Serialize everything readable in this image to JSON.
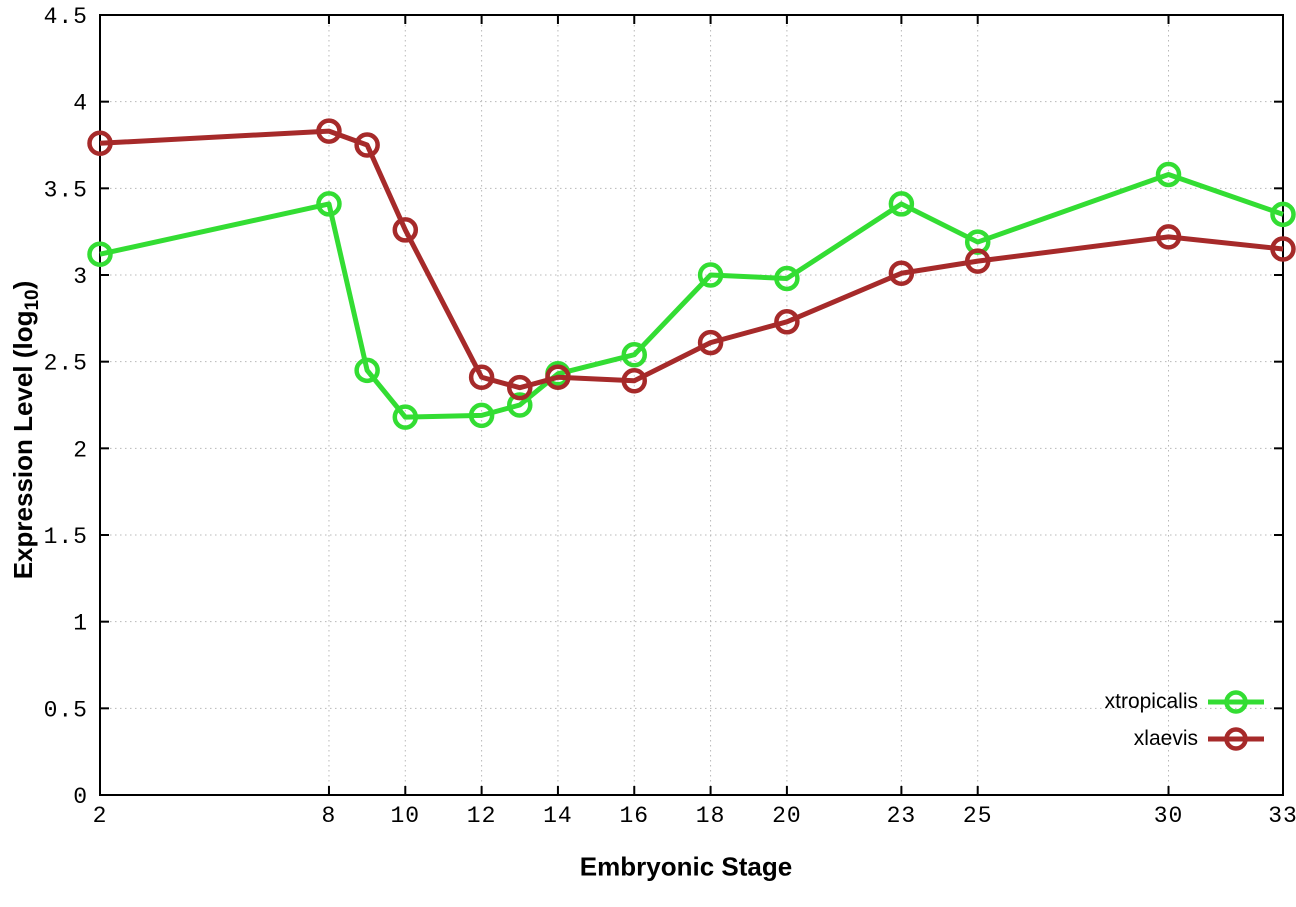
{
  "figure": {
    "background": "#ffffff",
    "xlabel": "Embryonic Stage",
    "ylabel_main": "Expression Level (log",
    "ylabel_sub": "10",
    "ylabel_end": ")"
  },
  "style": {
    "axis_color": "#000000",
    "grid_color": "#b8b8b8",
    "text_color": "#000000"
  },
  "chart_data": {
    "type": "line",
    "title": "",
    "xlabel": "Embryonic Stage",
    "ylabel": "Expression Level (log10)",
    "xlim": [
      2,
      33
    ],
    "ylim": [
      0,
      4.5
    ],
    "x_ticks": [
      2,
      8,
      10,
      12,
      14,
      16,
      18,
      20,
      23,
      25,
      30,
      33
    ],
    "y_ticks": [
      0,
      0.5,
      1,
      1.5,
      2,
      2.5,
      3,
      3.5,
      4,
      4.5
    ],
    "grid": true,
    "grid_style": "dotted",
    "legend_position": "bottom-right-inside",
    "x": [
      2,
      8,
      9,
      10,
      12,
      13,
      14,
      16,
      18,
      20,
      23,
      25,
      30,
      33
    ],
    "series": [
      {
        "name": "xtropicalis",
        "color": "#33dd33",
        "marker": "open-circle",
        "values": [
          3.12,
          3.41,
          2.45,
          2.18,
          2.19,
          2.25,
          2.43,
          2.54,
          3.0,
          2.98,
          3.41,
          3.19,
          3.58,
          3.35
        ]
      },
      {
        "name": "xlaevis",
        "color": "#a62a2a",
        "marker": "open-circle",
        "values": [
          3.76,
          3.83,
          3.75,
          3.26,
          2.41,
          2.35,
          2.41,
          2.39,
          2.61,
          2.73,
          3.01,
          3.08,
          3.22,
          3.15
        ]
      }
    ]
  }
}
